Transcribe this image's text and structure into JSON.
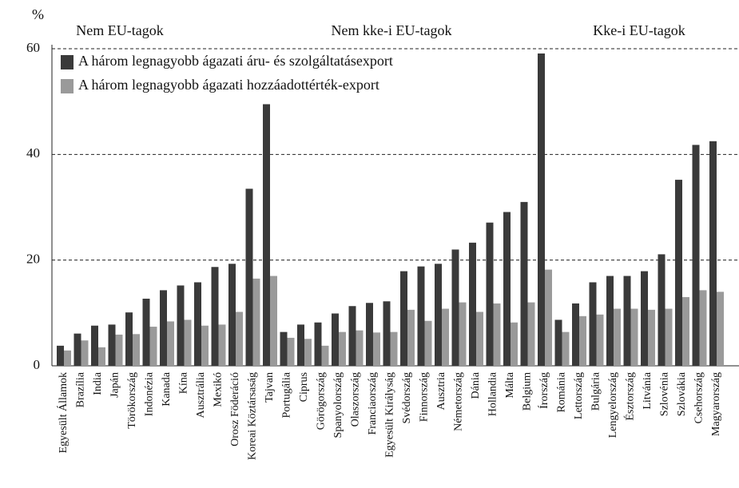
{
  "chart_data": {
    "type": "bar",
    "y_label": "%",
    "group_labels": [
      "Nem EU-tagok",
      "Nem kke-i EU-tagok",
      "Kke-i EU-tagok"
    ],
    "categories": [
      "Egyesült Államok",
      "Brazília",
      "India",
      "Japán",
      "Törökország",
      "Indonézia",
      "Kanada",
      "Kína",
      "Ausztrália",
      "Mexikó",
      "Orosz Föderáció",
      "Koreai Köztársaság",
      "Tajvan",
      "Portugália",
      "Ciprus",
      "Görögország",
      "Spanyolország",
      "Olaszország",
      "Franciaország",
      "Egyesült Királyság",
      "Svédország",
      "Finnország",
      "Ausztria",
      "Németország",
      "Dánia",
      "Hollandia",
      "Málta",
      "Belgium",
      "Írország",
      "Románia",
      "Lettország",
      "Bulgária",
      "Lengyelország",
      "Észtország",
      "Litvánia",
      "Szlovénia",
      "Szlovákia",
      "Csehország",
      "Magyarország"
    ],
    "series": [
      {
        "name": "A három legnagyobb ágazati áru- és szolgáltatásexport",
        "color": "#3a3a3a",
        "values": [
          3.8,
          6.1,
          7.6,
          7.8,
          10.1,
          12.7,
          14.3,
          15.2,
          15.8,
          18.7,
          19.3,
          33.5,
          49.5,
          6.4,
          7.8,
          8.2,
          9.9,
          11.3,
          11.9,
          12.2,
          17.9,
          18.8,
          19.3,
          22.0,
          23.3,
          27.1,
          29.1,
          31.0,
          59.1,
          8.7,
          11.8,
          15.8,
          17.0,
          17.0,
          17.9,
          21.1,
          35.2,
          41.8,
          42.5
        ]
      },
      {
        "name": "A három legnagyobb ágazati hozzáadottérték-export",
        "color": "#9a9a9a",
        "values": [
          2.9,
          4.8,
          3.5,
          5.9,
          6.0,
          7.4,
          8.4,
          8.7,
          7.6,
          7.8,
          10.2,
          16.5,
          17.0,
          5.3,
          5.1,
          3.8,
          6.4,
          6.7,
          6.3,
          6.4,
          10.6,
          8.5,
          10.8,
          12.0,
          10.2,
          11.8,
          8.2,
          12.0,
          18.2,
          6.4,
          9.4,
          9.7,
          10.8,
          10.8,
          10.6,
          10.8,
          13.0,
          14.3,
          14.0
        ]
      }
    ],
    "ylim": [
      0,
      60
    ],
    "yticks": [
      0,
      20,
      40,
      60
    ],
    "grid": true
  }
}
